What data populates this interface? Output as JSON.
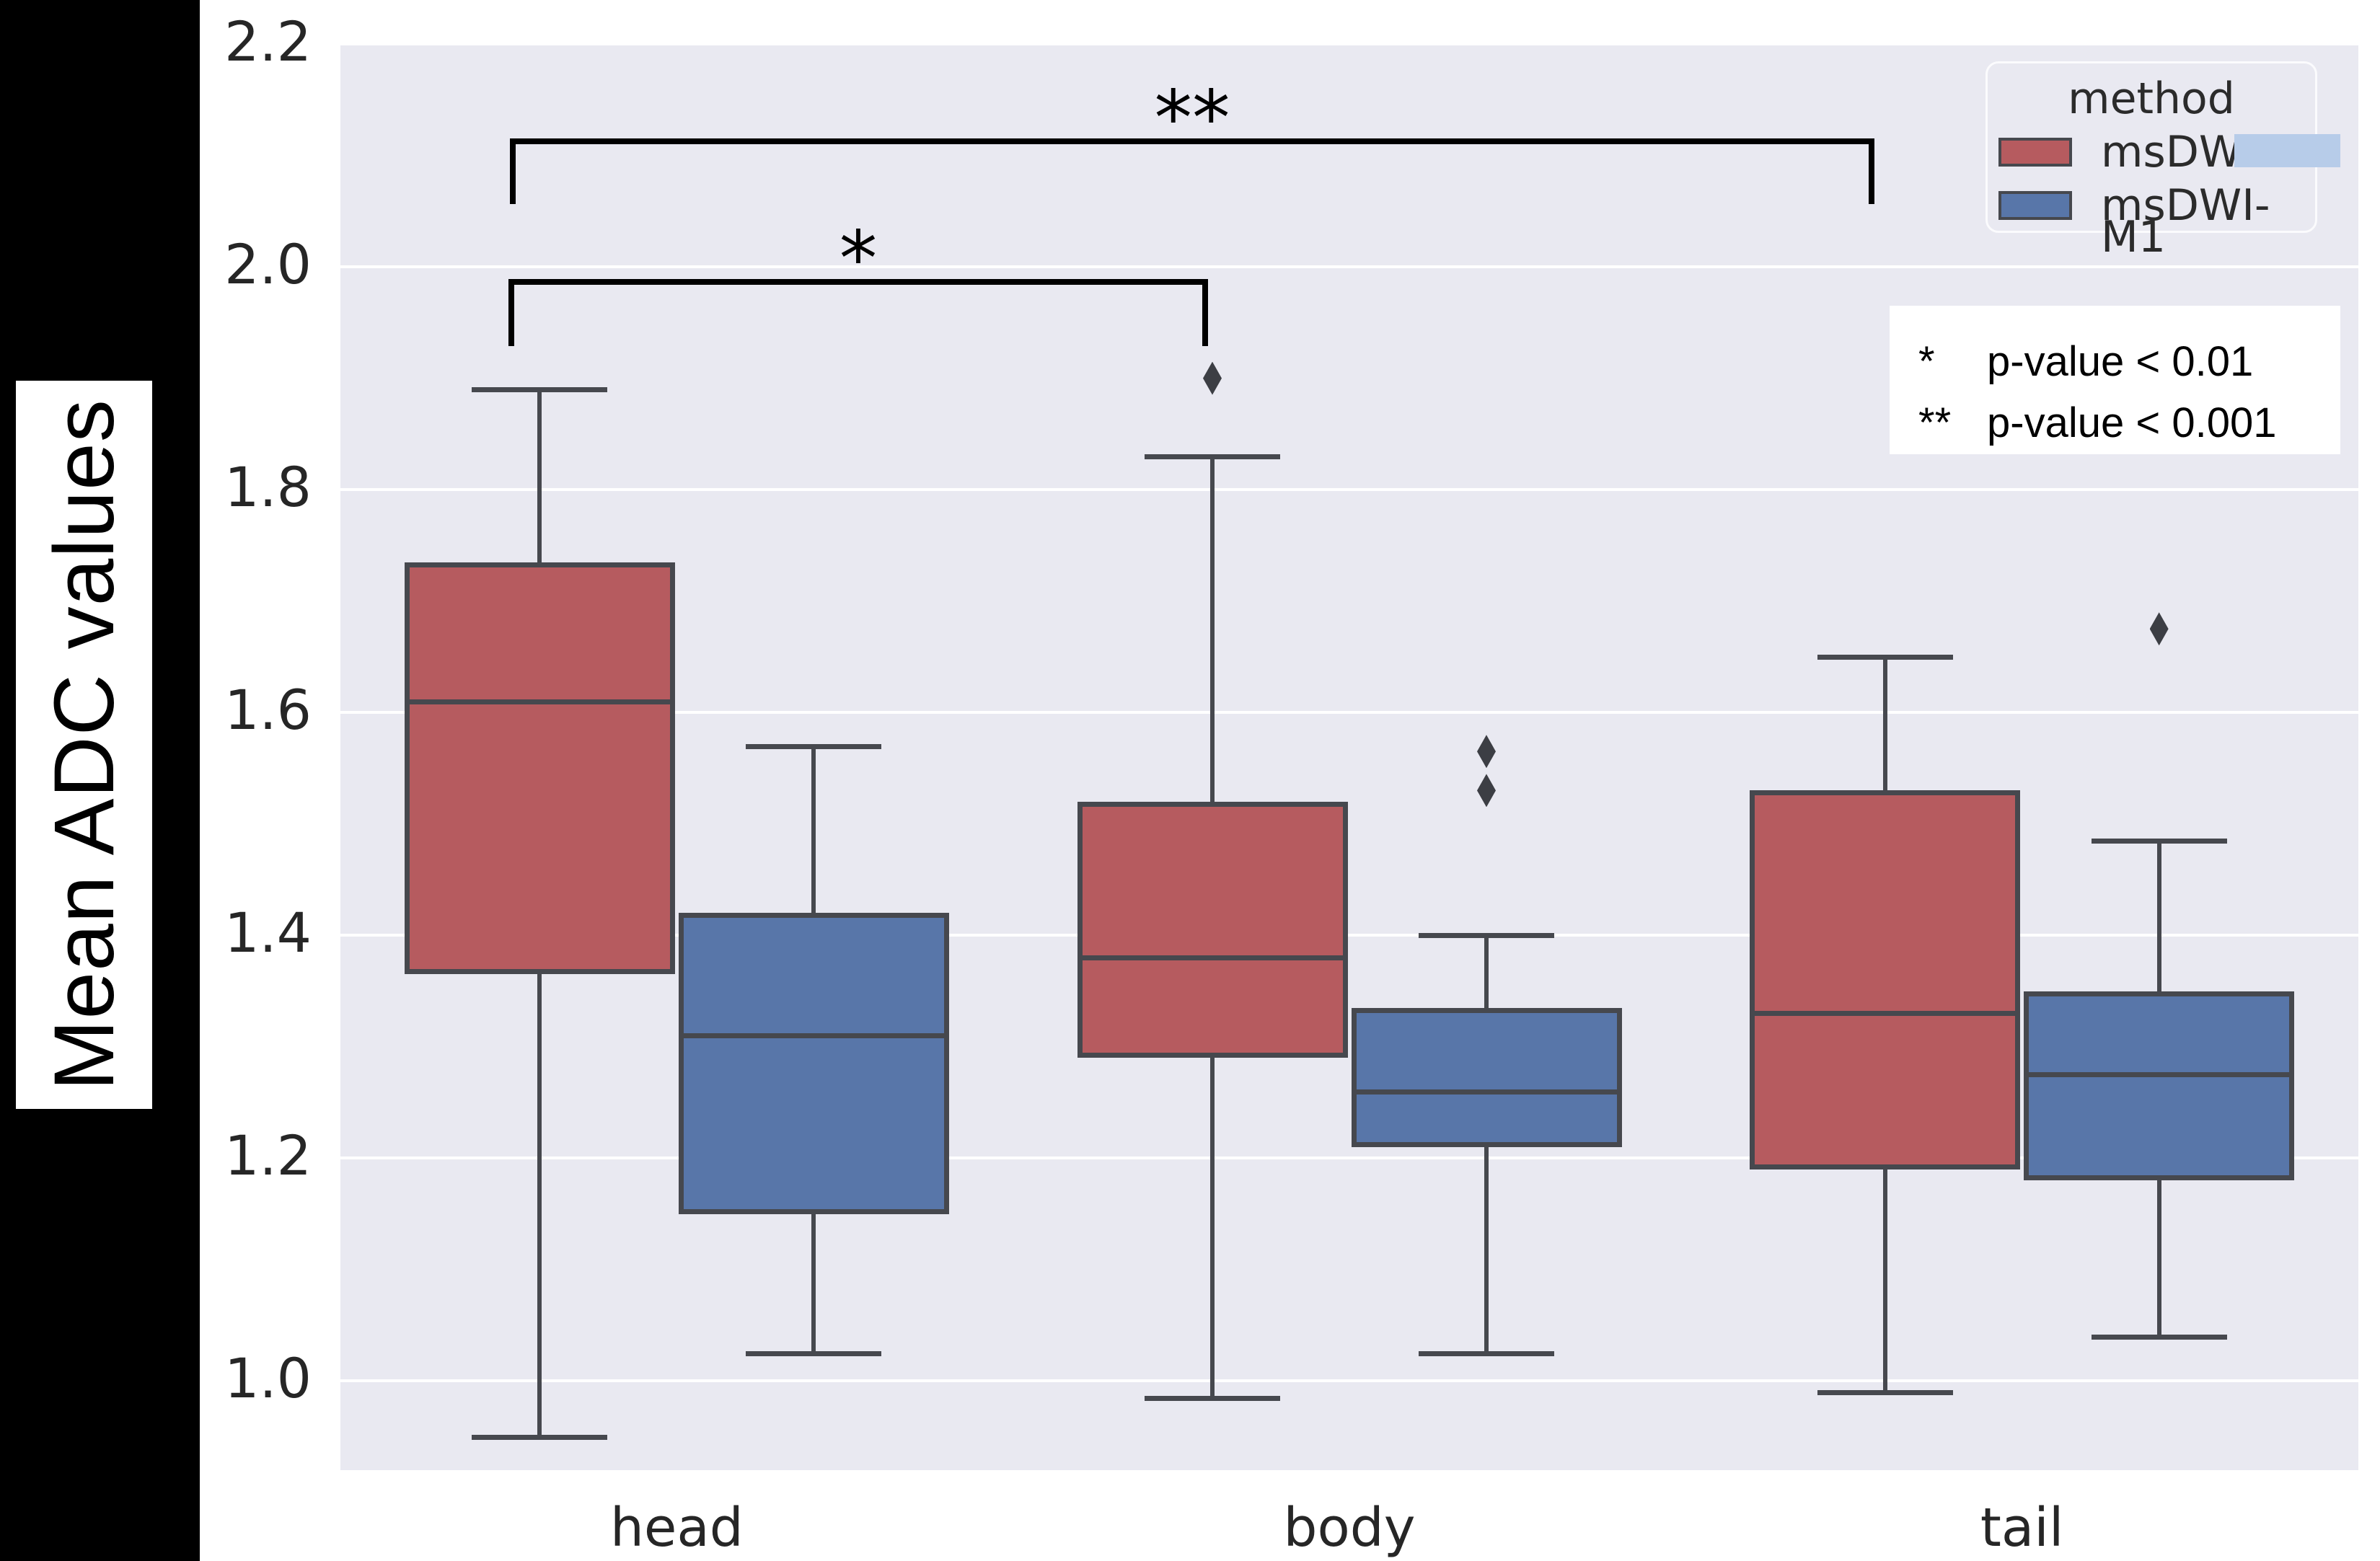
{
  "figure": {
    "y_axis_label": "Mean ADC values",
    "legend": {
      "title": "method",
      "entries": [
        {
          "label": "msDWI-",
          "swatch_color": "#b65b5f",
          "label_obscured": true
        },
        {
          "label": "msDWI-M1",
          "swatch_color": "#5876a9",
          "label_obscured": false
        }
      ]
    },
    "pvalue_note": {
      "line1_symbol": "*",
      "line1_text": "p-value < 0.01",
      "line2_symbol": "**",
      "line2_text": "p-value < 0.001"
    },
    "colors": {
      "plot_background": "#e9e9f1",
      "gridline": "#ffffff",
      "box_edge": "#46484e",
      "series_red": "#b65b5f",
      "series_blue": "#5876a9",
      "outlier": "#3c3e44",
      "redaction_overlay": "#b7cce9",
      "left_strip": "#000000",
      "text": "#262626"
    }
  },
  "chart_data": {
    "type": "boxplot",
    "title": "",
    "xlabel": "",
    "ylabel": "Mean ADC values",
    "categories": [
      "head",
      "body",
      "tail"
    ],
    "yticks": [
      "2.2",
      "2.0",
      "1.8",
      "1.6",
      "1.4",
      "1.2",
      "1.0"
    ],
    "ytick_values": [
      2.2,
      2.0,
      1.8,
      1.6,
      1.4,
      1.2,
      1.0
    ],
    "ylim": [
      0.92,
      2.2
    ],
    "grid": true,
    "legend_position": "upper right",
    "series": [
      {
        "name": "msDWI- (rest of label obscured)",
        "color": "#b65b5f",
        "boxes": [
          {
            "category": "head",
            "whisker_low": 0.95,
            "q1": 1.365,
            "median": 1.61,
            "q3": 1.735,
            "whisker_high": 1.89,
            "outliers": []
          },
          {
            "category": "body",
            "whisker_low": 0.985,
            "q1": 1.29,
            "median": 1.38,
            "q3": 1.52,
            "whisker_high": 1.83,
            "outliers": [
              1.9
            ]
          },
          {
            "category": "tail",
            "whisker_low": 0.99,
            "q1": 1.19,
            "median": 1.33,
            "q3": 1.53,
            "whisker_high": 1.65,
            "outliers": []
          }
        ]
      },
      {
        "name": "msDWI-M1",
        "color": "#5876a9",
        "boxes": [
          {
            "category": "head",
            "whisker_low": 1.025,
            "q1": 1.15,
            "median": 1.31,
            "q3": 1.42,
            "whisker_high": 1.57,
            "outliers": []
          },
          {
            "category": "body",
            "whisker_low": 1.025,
            "q1": 1.21,
            "median": 1.26,
            "q3": 1.335,
            "whisker_high": 1.4,
            "outliers": [
              1.565,
              1.53
            ]
          },
          {
            "category": "tail",
            "whisker_low": 1.04,
            "q1": 1.18,
            "median": 1.275,
            "q3": 1.35,
            "whisker_high": 1.485,
            "outliers": [
              1.675
            ]
          }
        ]
      }
    ],
    "significance_brackets": [
      {
        "label": "*",
        "meaning": "p-value < 0.01",
        "from_category": "head",
        "to_category": "body"
      },
      {
        "label": "**",
        "meaning": "p-value < 0.001",
        "from_category": "head",
        "to_category": "tail"
      }
    ]
  }
}
